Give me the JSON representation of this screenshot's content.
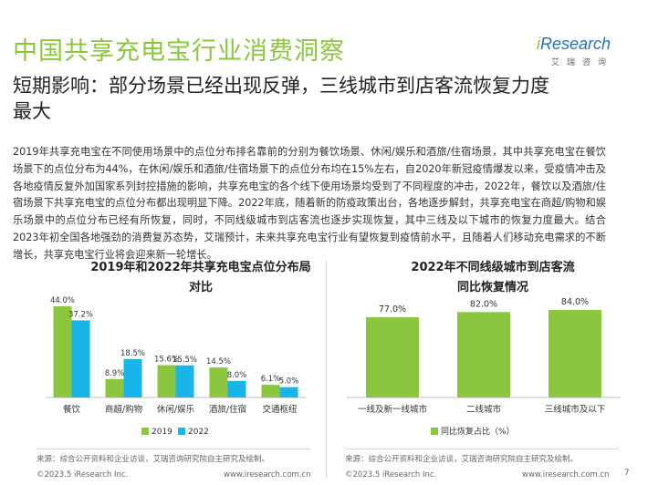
{
  "header": {
    "title": "中国共享充电宝行业消费洞察",
    "subtitle": "短期影响：部分场景已经出现反弹，三线城市到店客流恢复力度最大",
    "logo_brand": "iResearch",
    "logo_cn": "艾瑞咨询"
  },
  "body_text": "2019年共享充电宝在不同使用场景中的点位分布排名靠前的分别为餐饮场景、休闲/娱乐和酒旅/住宿场景，其中共享充电宝在餐饮场景下的点位分布为44%，在休闲/娱乐和酒旅/住宿场景下的点位分布均在15%左右，自2020年新冠疫情爆发以来，受疫情冲击及各地疫情反复外加国家系列封控措施的影响，共享充电宝的各个线下使用场景均受到了不同程度的冲击，2022年，餐饮以及酒旅/住宿场景下共享充电宝的点位分布都出现明显下降。2022年底，随着新的防疫政策出台，各地逐步解封，共享充电宝在商超/购物和娱乐场景中的点位分布已经有所恢复，同时，不同线级城市到店客流也逐步实现恢复，其中三线及以下城市的恢复力度最大。结合2023年初全国各地强劲的消费复苏态势，艾瑞预计，未来共享充电宝行业有望恢复到疫情前水平，且随着人们移动充电需求的不断增长，共享充电宝行业将会迎来新一轮增长。",
  "colors": {
    "green": "#8cc63f",
    "blue": "#17b5e8",
    "axis": "#bfbfbf"
  },
  "chart_data": [
    {
      "type": "bar",
      "title": "2019年和2022年共享充电宝点位分布局对比",
      "categories": [
        "餐饮",
        "商超/购物",
        "休闲/娱乐",
        "酒旅/住宿",
        "交通枢纽"
      ],
      "series": [
        {
          "name": "2019",
          "values": [
            44.0,
            8.9,
            15.6,
            14.5,
            6.1
          ],
          "labels": [
            "44.0%",
            "8.9%",
            "15.6%",
            "14.5%",
            "6.1%"
          ],
          "color": "#8cc63f"
        },
        {
          "name": "2022",
          "values": [
            37.2,
            18.5,
            15.5,
            8.0,
            5.0
          ],
          "labels": [
            "37.2%",
            "18.5%",
            "15.5%",
            "8.0%",
            "5.0%"
          ],
          "color": "#17b5e8"
        }
      ],
      "ylim": [
        0,
        44
      ]
    },
    {
      "type": "bar",
      "title": "2022年不同线级城市到店客流同比恢复情况",
      "categories": [
        "一线及新一线城市",
        "二线城市",
        "三线城市及以下"
      ],
      "series": [
        {
          "name": "同比恢复占比（%）",
          "values": [
            77.0,
            82.0,
            84.0
          ],
          "labels": [
            "77.0%",
            "82.0%",
            "84.0%"
          ],
          "color": "#8cc63f"
        }
      ],
      "ylim": [
        0,
        84
      ]
    }
  ],
  "chart1_title_line1": "2019年和2022年共享充电宝点位分布局",
  "chart1_title_line2": "对比",
  "chart2_title_line1": "2022年不同线级城市到店客流",
  "chart2_title_line2": "同比恢复情况",
  "footer": {
    "source": "来源：综合公开资料和企业访谈，艾瑞咨询研究院自主研究及绘制。",
    "copyright": "©2023.5 iResearch Inc.",
    "url": "www.iresearch.com.cn",
    "page": "7"
  }
}
